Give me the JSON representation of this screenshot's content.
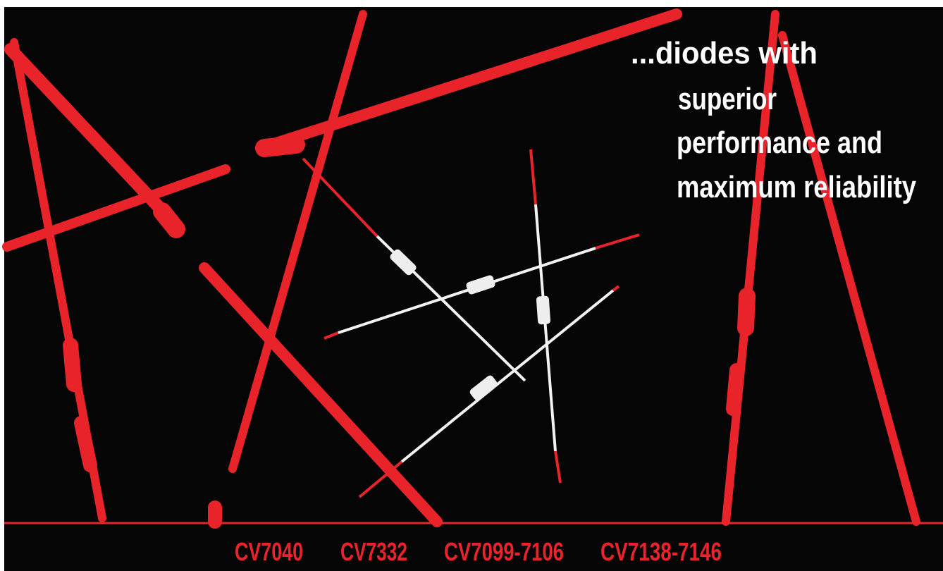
{
  "headline": [
    "...diodes with",
    "superior",
    "performance and",
    "maximum reliability"
  ],
  "part_numbers": [
    "CV7040",
    "CV7332",
    "CV7099-7106",
    "CV7138-7146"
  ]
}
